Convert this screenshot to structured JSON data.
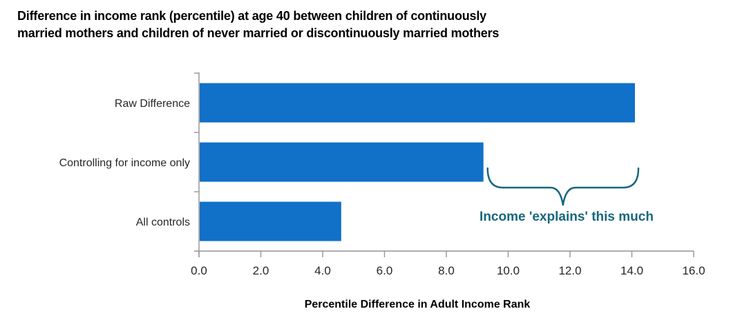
{
  "title": {
    "line1": "Difference in income rank (percentile) at age 40 between children of continuously",
    "line2": "married mothers and children of never married or discontinuously married mothers"
  },
  "chart_data": {
    "type": "bar",
    "orientation": "horizontal",
    "title": "Difference in income rank (percentile) at age 40 between children of continuously married mothers and children of never married or discontinuously married mothers",
    "categories": [
      "Raw Difference",
      "Controlling for income only",
      "All controls"
    ],
    "values": [
      14.1,
      9.2,
      4.6
    ],
    "xlabel": "Percentile Difference in Adult Income Rank",
    "ylabel": "",
    "xlim": [
      0,
      16
    ],
    "xticks": [
      0,
      2,
      4,
      6,
      8,
      10,
      12,
      14,
      16
    ],
    "xtick_labels": [
      "0.0",
      "2.0",
      "4.0",
      "6.0",
      "8.0",
      "10.0",
      "12.0",
      "14.0",
      "16.0"
    ],
    "grid": false,
    "legend": "none",
    "bar_color": "#1170C7",
    "axis_color": "#949494",
    "label_color": "#262626"
  },
  "annotation": {
    "text": "Income 'explains' this much",
    "color": "#17677E",
    "brace_start_value": 9.2,
    "brace_end_value": 14.1
  }
}
